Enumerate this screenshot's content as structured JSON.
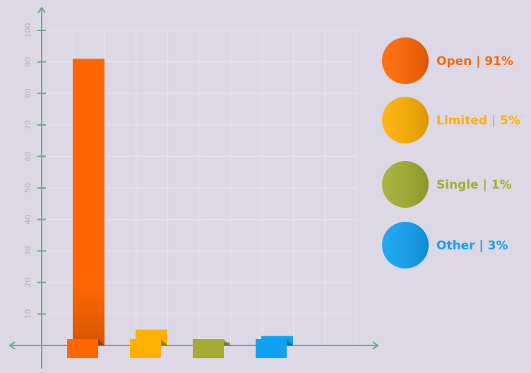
{
  "chart_data": {
    "type": "bar",
    "categories": [
      "Open",
      "Limited",
      "Single",
      "Other"
    ],
    "values": [
      91,
      5,
      1,
      3
    ],
    "ylim": [
      0,
      100
    ],
    "yticks": [
      10,
      20,
      30,
      40,
      50,
      60,
      70,
      80,
      90,
      100
    ],
    "grid": true,
    "legend_placement": "right",
    "colors": [
      "#ff6600",
      "#ffb000",
      "#a3ae30",
      "#10a2f2"
    ],
    "legend": [
      {
        "label": "Open | 91%",
        "color": "#ff6600"
      },
      {
        "label": "Limited | 5%",
        "color": "#ffb000"
      },
      {
        "label": "Single | 1%",
        "color": "#a3ae30"
      },
      {
        "label": "Other | 3%",
        "color": "#10a2f2"
      }
    ],
    "axis_color": "#6aae84",
    "grid_color": "#e9e6ee"
  }
}
